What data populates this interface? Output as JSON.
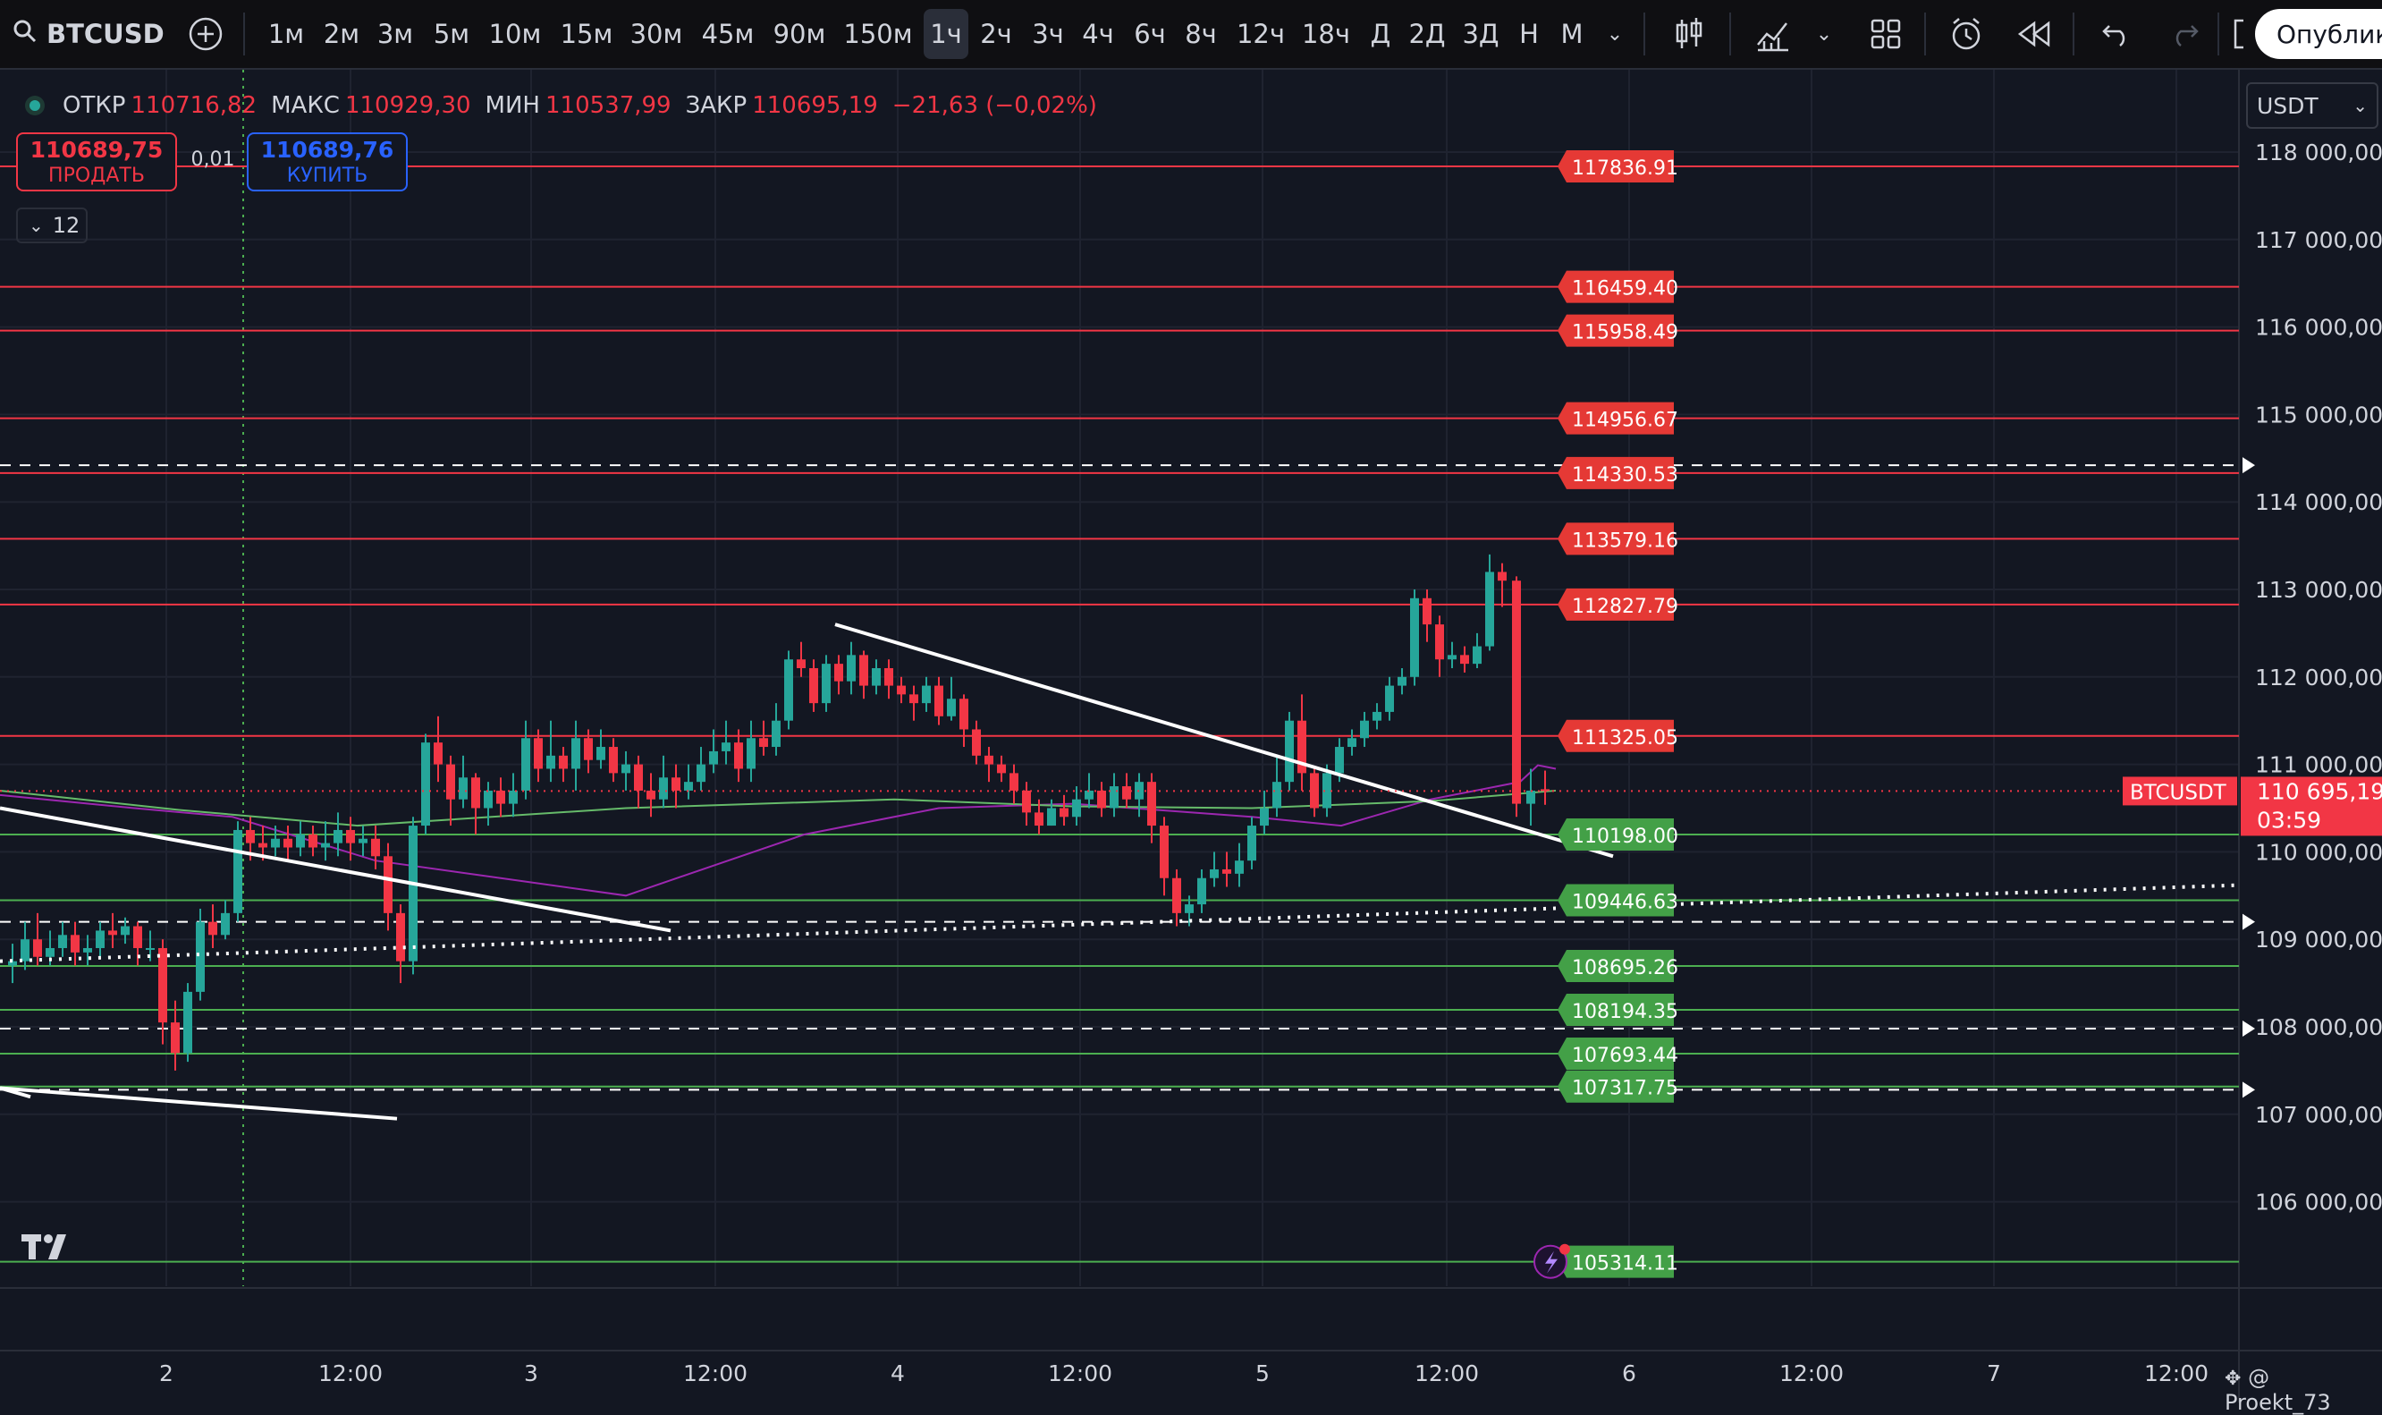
{
  "toolbar": {
    "symbol": "BTCUSD",
    "intervals": [
      "1м",
      "2м",
      "3м",
      "5м",
      "10м",
      "15м",
      "30м",
      "45м",
      "90м",
      "150м",
      "1ч",
      "2ч",
      "3ч",
      "4ч",
      "6ч",
      "8ч",
      "12ч",
      "18ч",
      "Д",
      "2Д",
      "3Д",
      "Н",
      "М"
    ],
    "active_interval": "1ч",
    "publish_label": "Опублико"
  },
  "legend": {
    "open_label": "ОТКР",
    "open": "110716,82",
    "high_label": "МАКС",
    "high": "110929,30",
    "low_label": "МИН",
    "low": "110537,99",
    "close_label": "ЗАКР",
    "close": "110695,19",
    "change": "−21,63 (−0,02%)"
  },
  "trade": {
    "sell_price": "110689,75",
    "sell_label": "ПРОДАТЬ",
    "spread": "0,01",
    "buy_price": "110689,76",
    "buy_label": "КУПИТЬ",
    "quantity": "12"
  },
  "currency": "USDT",
  "price_axis": [
    "118 000,00",
    "117 000,00",
    "116 000,00",
    "115 000,00",
    "114 000,00",
    "113 000,00",
    "112 000,00",
    "111 000,00",
    "110 000,00",
    "109 000,00",
    "108 000,00",
    "107 000,00",
    "106 000,00"
  ],
  "time_axis": [
    "2",
    "12:00",
    "3",
    "12:00",
    "4",
    "12:00",
    "5",
    "12:00",
    "6",
    "12:00",
    "7",
    "12:00"
  ],
  "current_price": {
    "symbol": "BTCUSDT",
    "price": "110 695,19",
    "countdown": "03:59"
  },
  "resistance_levels": [
    "117836.91",
    "116459.40",
    "115958.49",
    "114956.67",
    "114330.53",
    "113579.16",
    "112827.79",
    "111325.05"
  ],
  "support_levels": [
    "110198.00",
    "109446.63",
    "108695.26",
    "108194.35",
    "107693.44",
    "107317.75",
    "105314.11"
  ],
  "watermark": "@ Proekt_73",
  "colors": {
    "up": "#26a69a",
    "down": "#f23645",
    "resistance": "#f23645",
    "support": "#4caf50",
    "background": "#131722"
  }
}
